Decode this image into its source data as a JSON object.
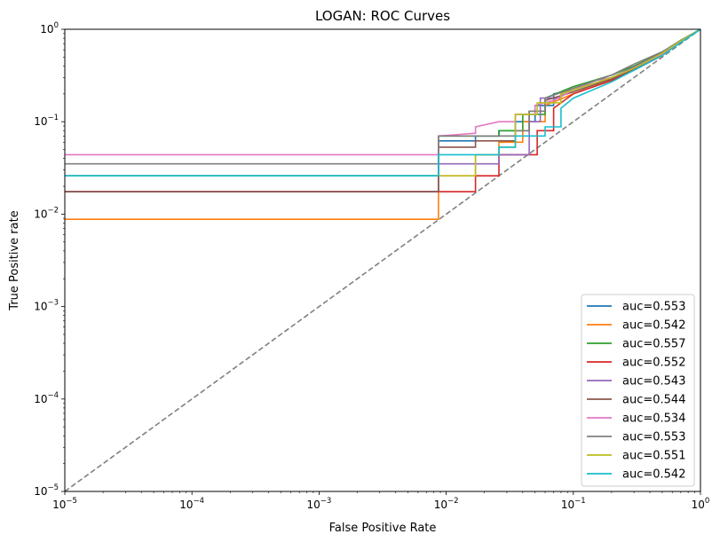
{
  "chart_data": {
    "type": "line",
    "title": "LOGAN: ROC Curves",
    "xlabel": "False Positive Rate",
    "ylabel": "True Positive rate",
    "xscale": "log",
    "yscale": "log",
    "xlim": [
      1e-05,
      1
    ],
    "ylim": [
      1e-05,
      1
    ],
    "xticks": [
      {
        "value": 1e-05,
        "base": "10",
        "exp": "−5"
      },
      {
        "value": 0.0001,
        "base": "10",
        "exp": "−4"
      },
      {
        "value": 0.001,
        "base": "10",
        "exp": "−3"
      },
      {
        "value": 0.01,
        "base": "10",
        "exp": "−2"
      },
      {
        "value": 0.1,
        "base": "10",
        "exp": "−1"
      },
      {
        "value": 1,
        "base": "10",
        "exp": "0"
      }
    ],
    "yticks": [
      {
        "value": 1e-05,
        "base": "10",
        "exp": "−5"
      },
      {
        "value": 0.0001,
        "base": "10",
        "exp": "−4"
      },
      {
        "value": 0.001,
        "base": "10",
        "exp": "−3"
      },
      {
        "value": 0.01,
        "base": "10",
        "exp": "−2"
      },
      {
        "value": 0.1,
        "base": "10",
        "exp": "−1"
      },
      {
        "value": 1,
        "base": "10",
        "exp": "0"
      }
    ],
    "legend_position": "lower right",
    "reference_line": {
      "name": "chance",
      "color": "#808080",
      "style": "dashed",
      "x": [
        1e-05,
        1
      ],
      "y": [
        1e-05,
        1
      ]
    },
    "series": [
      {
        "name": "auc=0.553",
        "color": "#1f77b4",
        "x": [
          1e-05,
          0.0087,
          0.0087,
          0.017,
          0.017,
          0.026,
          0.026,
          0.035,
          0.035,
          0.05,
          0.05,
          0.07,
          0.07,
          0.1,
          0.2,
          0.3,
          0.5,
          0.7,
          1
        ],
        "y": [
          0.026,
          0.026,
          0.062,
          0.062,
          0.07,
          0.07,
          0.08,
          0.08,
          0.1,
          0.1,
          0.15,
          0.15,
          0.2,
          0.22,
          0.3,
          0.38,
          0.55,
          0.75,
          1
        ]
      },
      {
        "name": "auc=0.542",
        "color": "#ff7f0e",
        "x": [
          1e-05,
          0.0087,
          0.0087,
          0.017,
          0.017,
          0.026,
          0.026,
          0.04,
          0.04,
          0.06,
          0.06,
          0.1,
          0.2,
          0.3,
          0.5,
          0.7,
          1
        ],
        "y": [
          0.0088,
          0.0088,
          0.026,
          0.026,
          0.044,
          0.044,
          0.06,
          0.06,
          0.1,
          0.1,
          0.15,
          0.2,
          0.28,
          0.37,
          0.53,
          0.73,
          1
        ]
      },
      {
        "name": "auc=0.557",
        "color": "#2ca02c",
        "x": [
          1e-05,
          0.0087,
          0.0087,
          0.026,
          0.026,
          0.04,
          0.04,
          0.06,
          0.06,
          0.1,
          0.2,
          0.3,
          0.5,
          0.7,
          1
        ],
        "y": [
          0.026,
          0.026,
          0.07,
          0.07,
          0.08,
          0.08,
          0.12,
          0.12,
          0.18,
          0.24,
          0.32,
          0.4,
          0.56,
          0.76,
          1
        ]
      },
      {
        "name": "auc=0.552",
        "color": "#d62728",
        "x": [
          1e-05,
          0.0087,
          0.017,
          0.017,
          0.026,
          0.026,
          0.035,
          0.035,
          0.052,
          0.052,
          0.07,
          0.07,
          0.1,
          0.2,
          0.3,
          0.5,
          0.7,
          1
        ],
        "y": [
          0.0175,
          0.0175,
          0.0175,
          0.026,
          0.026,
          0.044,
          0.044,
          0.044,
          0.044,
          0.08,
          0.08,
          0.14,
          0.2,
          0.28,
          0.36,
          0.52,
          0.74,
          1
        ]
      },
      {
        "name": "auc=0.543",
        "color": "#9467bd",
        "x": [
          1e-05,
          0.0087,
          0.0087,
          0.026,
          0.026,
          0.045,
          0.045,
          0.055,
          0.055,
          0.08,
          0.08,
          0.1,
          0.2,
          0.3,
          0.5,
          0.7,
          1
        ],
        "y": [
          0.0175,
          0.0175,
          0.035,
          0.035,
          0.044,
          0.044,
          0.1,
          0.1,
          0.18,
          0.18,
          0.2,
          0.22,
          0.3,
          0.39,
          0.55,
          0.75,
          1
        ]
      },
      {
        "name": "auc=0.544",
        "color": "#8c564b",
        "x": [
          1e-05,
          0.0087,
          0.0087,
          0.017,
          0.017,
          0.035,
          0.035,
          0.045,
          0.045,
          0.06,
          0.06,
          0.1,
          0.2,
          0.3,
          0.5,
          0.7,
          1
        ],
        "y": [
          0.0175,
          0.0175,
          0.053,
          0.053,
          0.062,
          0.062,
          0.08,
          0.08,
          0.13,
          0.13,
          0.17,
          0.21,
          0.29,
          0.37,
          0.54,
          0.74,
          1
        ]
      },
      {
        "name": "auc=0.534",
        "color": "#e377c2",
        "x": [
          1e-05,
          0.0087,
          0.0087,
          0.017,
          0.017,
          0.026,
          0.035,
          0.035,
          0.05,
          0.05,
          0.07,
          0.1,
          0.15,
          0.2,
          0.3,
          0.5,
          0.7,
          1
        ],
        "y": [
          0.044,
          0.044,
          0.07,
          0.075,
          0.088,
          0.1,
          0.1,
          0.12,
          0.12,
          0.15,
          0.17,
          0.22,
          0.28,
          0.3,
          0.38,
          0.54,
          0.74,
          1
        ]
      },
      {
        "name": "auc=0.553",
        "color": "#7f7f7f",
        "x": [
          1e-05,
          0.0087,
          0.0087,
          0.035,
          0.035,
          0.045,
          0.045,
          0.06,
          0.06,
          0.1,
          0.2,
          0.3,
          0.5,
          0.7,
          1
        ],
        "y": [
          0.035,
          0.035,
          0.07,
          0.07,
          0.08,
          0.08,
          0.13,
          0.13,
          0.18,
          0.23,
          0.32,
          0.42,
          0.57,
          0.76,
          1
        ]
      },
      {
        "name": "auc=0.551",
        "color": "#bcbd22",
        "x": [
          1e-05,
          0.0087,
          0.017,
          0.017,
          0.026,
          0.026,
          0.035,
          0.035,
          0.052,
          0.052,
          0.08,
          0.08,
          0.1,
          0.2,
          0.3,
          0.5,
          0.7,
          1
        ],
        "y": [
          0.026,
          0.026,
          0.026,
          0.044,
          0.044,
          0.053,
          0.053,
          0.12,
          0.12,
          0.16,
          0.16,
          0.2,
          0.22,
          0.3,
          0.38,
          0.55,
          0.75,
          1
        ]
      },
      {
        "name": "auc=0.542",
        "color": "#17becf",
        "x": [
          1e-05,
          0.0087,
          0.0087,
          0.026,
          0.026,
          0.035,
          0.035,
          0.06,
          0.06,
          0.08,
          0.08,
          0.1,
          0.2,
          0.3,
          0.5,
          0.7,
          1
        ],
        "y": [
          0.026,
          0.026,
          0.044,
          0.044,
          0.053,
          0.053,
          0.07,
          0.07,
          0.088,
          0.088,
          0.14,
          0.18,
          0.27,
          0.36,
          0.52,
          0.72,
          1
        ]
      }
    ]
  }
}
